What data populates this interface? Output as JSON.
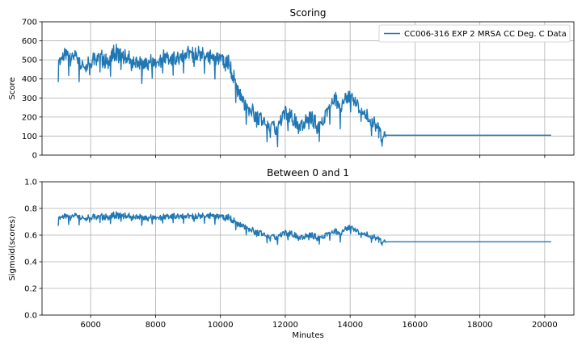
{
  "chart_data": [
    {
      "type": "line",
      "title": "Scoring",
      "xlabel": "",
      "ylabel": "Score",
      "xlim": [
        4500,
        20900
      ],
      "ylim": [
        0,
        700
      ],
      "xticks": [
        6000,
        8000,
        10000,
        12000,
        14000,
        16000,
        18000,
        20000
      ],
      "yticks": [
        0,
        100,
        200,
        300,
        400,
        500,
        600,
        700
      ],
      "ytick_labels": [
        "0",
        "100",
        "200",
        "300",
        "400",
        "500",
        "600",
        "700"
      ],
      "show_xtick_labels": false,
      "grid": true,
      "legend": "top-right",
      "series": [
        {
          "name": "CC006-316 EXP 2 MRSA CC Deg. C Data",
          "color": "#1f77b4",
          "x": [
            5000,
            5250,
            5500,
            5750,
            6000,
            6250,
            6500,
            6750,
            7000,
            7250,
            7500,
            7750,
            8000,
            8250,
            8500,
            8750,
            9000,
            9250,
            9500,
            9750,
            10000,
            10250,
            10500,
            10750,
            11000,
            11250,
            11500,
            11750,
            12000,
            12250,
            12500,
            12750,
            13000,
            13250,
            13500,
            13750,
            14000,
            14250,
            14500,
            14750,
            15000,
            15100,
            20200
          ],
          "y": [
            490,
            530,
            510,
            470,
            500,
            520,
            480,
            540,
            510,
            500,
            470,
            490,
            480,
            520,
            500,
            510,
            550,
            530,
            520,
            500,
            510,
            480,
            360,
            260,
            220,
            180,
            140,
            130,
            230,
            180,
            150,
            200,
            150,
            210,
            300,
            260,
            310,
            250,
            200,
            160,
            110,
            105,
            105
          ]
        }
      ]
    },
    {
      "type": "line",
      "title": "Between 0 and 1",
      "xlabel": "Minutes",
      "ylabel": "Sigmoid(scores)",
      "xlim": [
        4500,
        20900
      ],
      "ylim": [
        0,
        1
      ],
      "xticks": [
        6000,
        8000,
        10000,
        12000,
        14000,
        16000,
        18000,
        20000
      ],
      "xtick_labels": [
        "6000",
        "8000",
        "10000",
        "12000",
        "14000",
        "16000",
        "18000",
        "20000"
      ],
      "yticks": [
        0,
        0.2,
        0.4,
        0.6,
        0.8,
        1.0
      ],
      "ytick_labels": [
        "0.0",
        "0.2",
        "0.4",
        "0.6",
        "0.8",
        "1.0"
      ],
      "show_xtick_labels": true,
      "grid": true,
      "legend": "none",
      "series": [
        {
          "color": "#1f77b4",
          "x": [
            5000,
            5250,
            5500,
            5750,
            6000,
            6250,
            6500,
            6750,
            7000,
            7250,
            7500,
            7750,
            8000,
            8250,
            8500,
            8750,
            9000,
            9250,
            9500,
            9750,
            10000,
            10250,
            10500,
            10750,
            11000,
            11250,
            11500,
            11750,
            12000,
            12250,
            12500,
            12750,
            13000,
            13250,
            13500,
            13750,
            14000,
            14250,
            14500,
            14750,
            15000,
            15100,
            20200
          ],
          "y": [
            0.73,
            0.74,
            0.74,
            0.73,
            0.74,
            0.74,
            0.73,
            0.75,
            0.74,
            0.74,
            0.73,
            0.73,
            0.73,
            0.74,
            0.74,
            0.74,
            0.75,
            0.74,
            0.74,
            0.74,
            0.74,
            0.73,
            0.69,
            0.66,
            0.63,
            0.61,
            0.58,
            0.58,
            0.62,
            0.6,
            0.58,
            0.6,
            0.58,
            0.6,
            0.63,
            0.62,
            0.66,
            0.62,
            0.6,
            0.58,
            0.56,
            0.55,
            0.55
          ]
        }
      ]
    }
  ]
}
